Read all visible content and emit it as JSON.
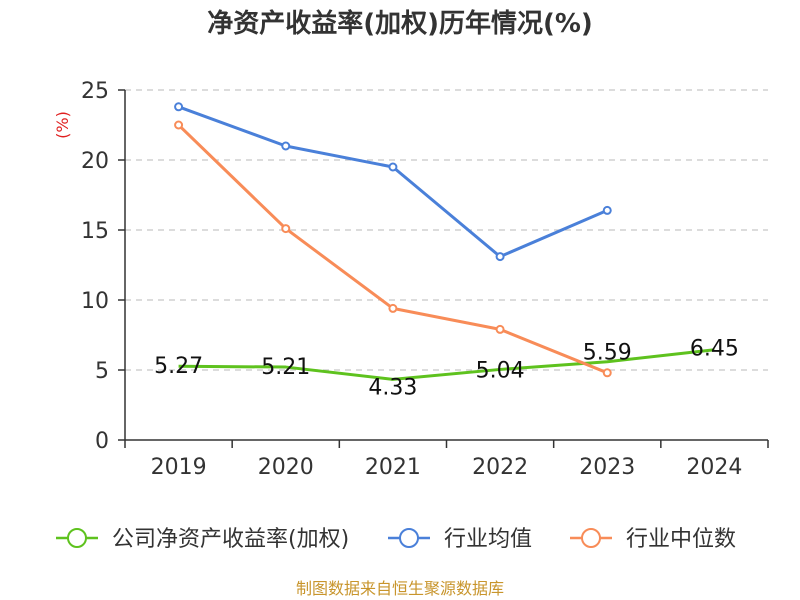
{
  "chart_data": {
    "type": "line",
    "title": "净资产收益率(加权)历年情况(%)",
    "ylabel": "(%)",
    "xlabel": "",
    "categories": [
      "2019",
      "2020",
      "2021",
      "2022",
      "2023",
      "2024"
    ],
    "ylim": [
      0,
      25
    ],
    "yticks": [
      0,
      5,
      10,
      15,
      20,
      25
    ],
    "grid": true,
    "legend_position": "bottom",
    "series": [
      {
        "name": "公司净资产收益率(加权)",
        "color": "#5ec21e",
        "values": [
          5.27,
          5.21,
          4.33,
          5.04,
          5.59,
          6.45
        ],
        "labels": [
          "5.27",
          "5.21",
          "4.33",
          "5.04",
          "5.59",
          "6.45"
        ]
      },
      {
        "name": "行业均值",
        "color": "#4a80d9",
        "values": [
          23.8,
          21.0,
          19.5,
          13.1,
          16.4,
          null
        ]
      },
      {
        "name": "行业中位数",
        "color": "#f88c58",
        "values": [
          22.5,
          15.1,
          9.4,
          7.9,
          4.8,
          null
        ]
      }
    ]
  },
  "source": {
    "text": "制图数据来自恒生聚源数据库",
    "color": "#c8952c"
  },
  "ylabel_color": "#e02020"
}
